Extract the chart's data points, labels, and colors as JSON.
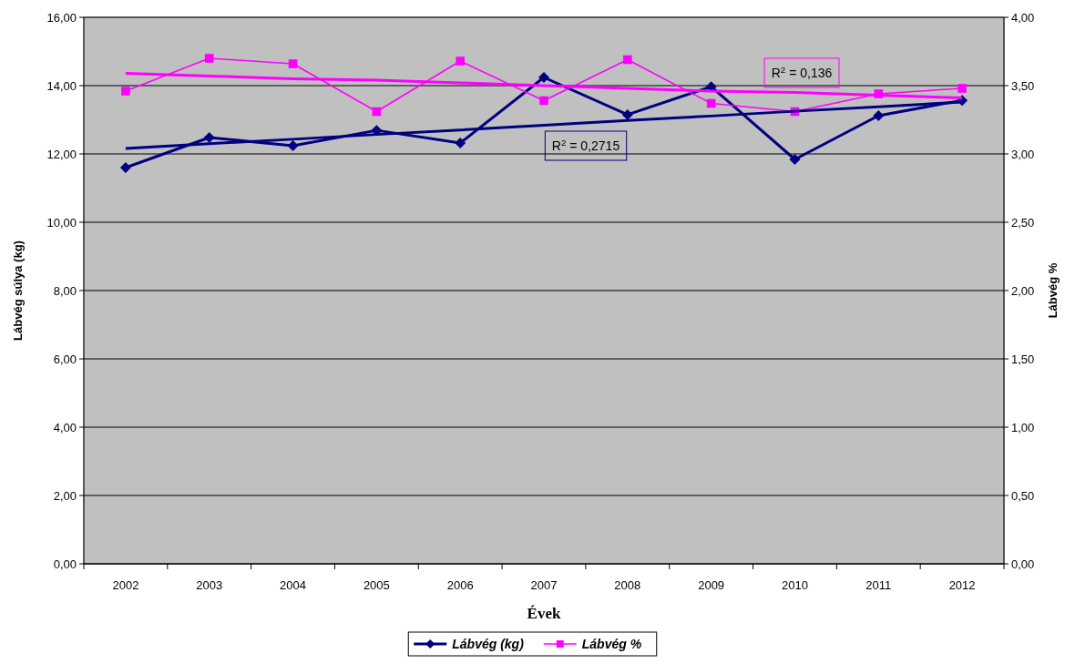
{
  "chart_data": {
    "type": "line",
    "xlabel": "Évek",
    "ylabel": "Lábvég súlya (kg)",
    "y2label": "Lábvég %",
    "categories": [
      "2002",
      "2003",
      "2004",
      "2005",
      "2006",
      "2007",
      "2008",
      "2009",
      "2010",
      "2011",
      "2012"
    ],
    "series": [
      {
        "name": "Lábvég (kg)",
        "color": "#000080",
        "marker": "diamond",
        "values": [
          11.6,
          12.48,
          12.24,
          12.69,
          12.32,
          14.24,
          13.15,
          13.97,
          11.84,
          13.12,
          13.57
        ]
      },
      {
        "name": "Lábvég %",
        "color": "#ff00ff",
        "marker": "square",
        "axis": "y2",
        "values": [
          3.46,
          3.7,
          3.66,
          3.31,
          3.68,
          3.39,
          3.69,
          3.37,
          3.31,
          3.44,
          3.48
        ]
      },
      {
        "type": "line",
        "color": "#000080",
        "marker": "none",
        "values": [
          12.16,
          12.3,
          12.43,
          12.57,
          12.7,
          12.84,
          12.98,
          13.11,
          13.25,
          13.38,
          13.52
        ]
      },
      {
        "type": "line",
        "color": "#ff00ff",
        "marker": "none",
        "axis": "y2",
        "values": [
          3.59,
          3.57,
          3.55,
          3.54,
          3.52,
          3.5,
          3.48,
          3.46,
          3.45,
          3.43,
          3.41
        ]
      }
    ],
    "ylim": [
      0,
      16
    ],
    "yticks": [
      {
        "value": 0,
        "label": "0,00"
      },
      {
        "value": 2,
        "label": "2,00"
      },
      {
        "value": 4,
        "label": "4,00"
      },
      {
        "value": 6,
        "label": "6,00"
      },
      {
        "value": 8,
        "label": "8,00"
      },
      {
        "value": 10,
        "label": "10,00"
      },
      {
        "value": 12,
        "label": "12,00"
      },
      {
        "value": 14,
        "label": "14,00"
      },
      {
        "value": 16,
        "label": "16,00"
      }
    ],
    "y2lim": [
      0,
      4
    ],
    "y2ticks": [
      {
        "value": 0,
        "label": "0,00"
      },
      {
        "value": 0.5,
        "label": "0,50"
      },
      {
        "value": 1,
        "label": "1,00"
      },
      {
        "value": 1.5,
        "label": "1,50"
      },
      {
        "value": 2,
        "label": "2,00"
      },
      {
        "value": 2.5,
        "label": "2,50"
      },
      {
        "value": 3,
        "label": "3,00"
      },
      {
        "value": 3.5,
        "label": "3,50"
      },
      {
        "value": 4,
        "label": "4,00"
      }
    ],
    "annotations": [
      "R$^{2}$ = 0,136",
      "R$^{2}$ = 0,2715"
    ],
    "grid": "y",
    "legend": "bottom"
  }
}
